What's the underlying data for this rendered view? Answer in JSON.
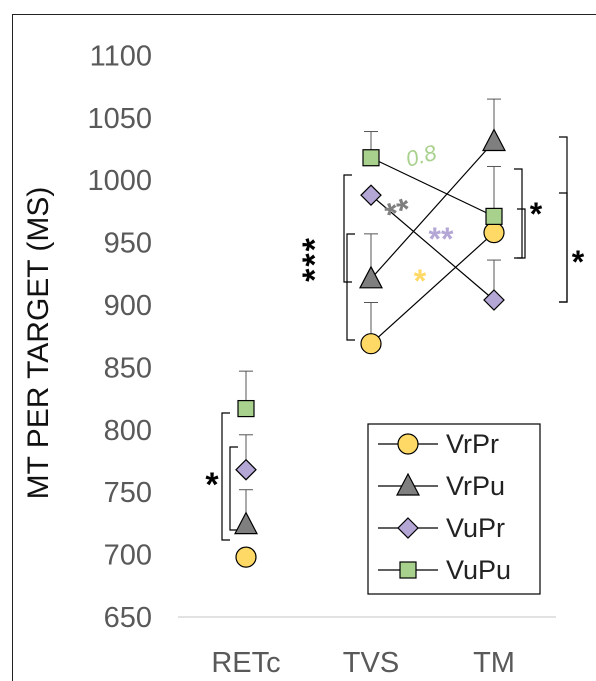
{
  "chart_data": {
    "type": "scatter",
    "ylabel": "MT PER TARGET (MS)",
    "categories": [
      "RETc",
      "TVS",
      "TM"
    ],
    "ylim": [
      650,
      1100
    ],
    "yticks": [
      "650",
      "700",
      "750",
      "800",
      "850",
      "900",
      "950",
      "1000",
      "1050",
      "1100"
    ],
    "grid": "baseline-only",
    "legend_position": "bottom-right",
    "series": [
      {
        "name": "VrPr",
        "marker": "circle",
        "color": "#ffd966",
        "values": [
          698,
          869,
          958
        ],
        "err_upper": [
          null,
          33,
          null
        ]
      },
      {
        "name": "VrPu",
        "marker": "triangle",
        "color": "#7f7f7f",
        "values": [
          724,
          921,
          1031
        ],
        "err_upper": [
          28,
          36,
          34
        ]
      },
      {
        "name": "VuPr",
        "marker": "diamond",
        "color": "#b4a7d6",
        "values": [
          768,
          988,
          904
        ],
        "err_upper": [
          28,
          null,
          32
        ]
      },
      {
        "name": "VuPu",
        "marker": "square",
        "color": "#a9d18e",
        "values": [
          817,
          1018,
          971
        ],
        "err_upper": [
          30,
          21,
          40
        ]
      }
    ],
    "connectors": [
      {
        "series": "VrPr",
        "from": "TVS",
        "to": "TM"
      },
      {
        "series": "VrPu",
        "from": "TVS",
        "to": "TM"
      },
      {
        "series": "VuPr",
        "from": "TVS",
        "to": "TM"
      },
      {
        "series": "VuPu",
        "from": "TVS",
        "to": "TM"
      }
    ],
    "annotations": [
      {
        "text": "*",
        "color": "#000000",
        "at": "RETc"
      },
      {
        "text": "***",
        "color": "#000000",
        "at": "TVS"
      },
      {
        "text": "0.8",
        "color": "#a9d18e",
        "at": "TVS-TM VuPu"
      },
      {
        "text": "**",
        "color": "#7f7f7f",
        "at": "TVS-TM"
      },
      {
        "text": "**",
        "color": "#b4a7d6",
        "at": "TVS-TM"
      },
      {
        "text": "*",
        "color": "#ffd966",
        "at": "TVS-TM"
      },
      {
        "text": "*",
        "color": "#000000",
        "at": "TM inner"
      },
      {
        "text": "*",
        "color": "#000000",
        "at": "TM outer"
      }
    ]
  }
}
